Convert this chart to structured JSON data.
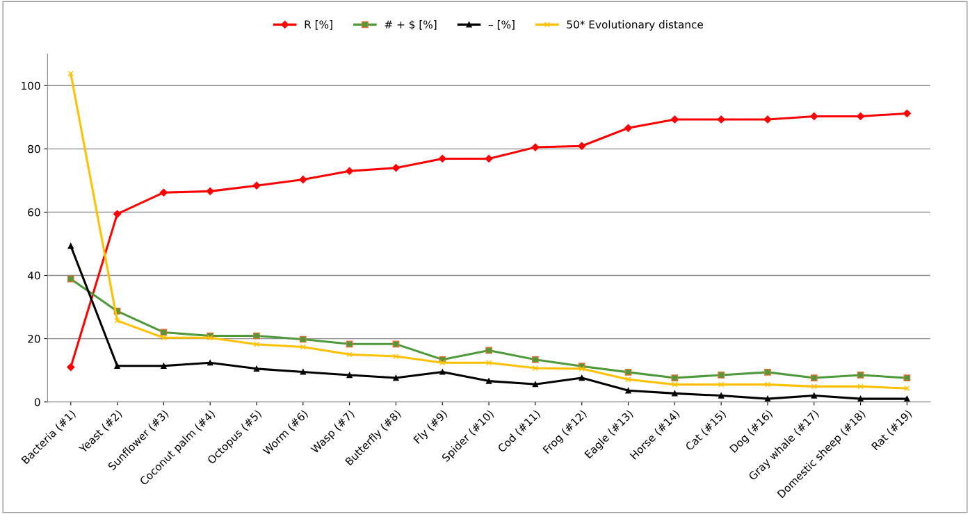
{
  "chart_data": {
    "type": "line",
    "categories": [
      "Bacteria (#1)",
      "Yeast (#2)",
      "Sunflower (#3)",
      "Coconut palm (#4)",
      "Octopus (#5)",
      "Worm (#6)",
      "Wasp (#7)",
      "Butterfly (#8)",
      "Fly (#9)",
      "Spider (#10)",
      "Cod (#11)",
      "Frog (#12)",
      "Eagle (#13)",
      "Horse (#14)",
      "Cat (#15)",
      "Dog (#16)",
      "Gray whale (#17)",
      "Domestic sheep (#18)",
      "Rat (#19)"
    ],
    "series": [
      {
        "name": "R [%]",
        "color": "#ff0000",
        "marker": "diamond",
        "values": [
          11.0,
          59.4,
          66.2,
          66.6,
          68.4,
          70.3,
          73.0,
          74.0,
          76.9,
          76.9,
          80.5,
          80.9,
          86.6,
          89.3,
          89.3,
          89.3,
          90.3,
          90.3,
          91.2
        ]
      },
      {
        "name": "# + $ [%]",
        "color": "#4e9a3a",
        "marker": "square",
        "values": [
          38.9,
          28.7,
          22.0,
          20.9,
          20.9,
          19.8,
          18.3,
          18.3,
          13.4,
          16.3,
          13.4,
          11.3,
          9.4,
          7.6,
          8.5,
          9.4,
          7.6,
          8.5,
          7.6
        ]
      },
      {
        "name": "– [%]",
        "color": "#000000",
        "marker": "triangle",
        "values": [
          49.3,
          11.4,
          11.4,
          12.4,
          10.5,
          9.5,
          8.5,
          7.6,
          9.5,
          6.6,
          5.6,
          7.6,
          3.6,
          2.7,
          2.0,
          1.0,
          2.0,
          1.0,
          1.0
        ]
      },
      {
        "name": "50* Evolutionary distance",
        "color": "#ffc000",
        "marker": "cross",
        "values": [
          103.8,
          25.7,
          20.3,
          20.3,
          18.2,
          17.4,
          15.0,
          14.4,
          12.4,
          12.4,
          10.7,
          10.5,
          7.1,
          5.5,
          5.5,
          5.5,
          4.9,
          4.9,
          4.3
        ]
      }
    ],
    "ylim": [
      0,
      110
    ],
    "yticks": [
      0,
      20,
      40,
      60,
      80,
      100
    ],
    "grid": "y",
    "legend": "top",
    "line_style": "solid"
  }
}
